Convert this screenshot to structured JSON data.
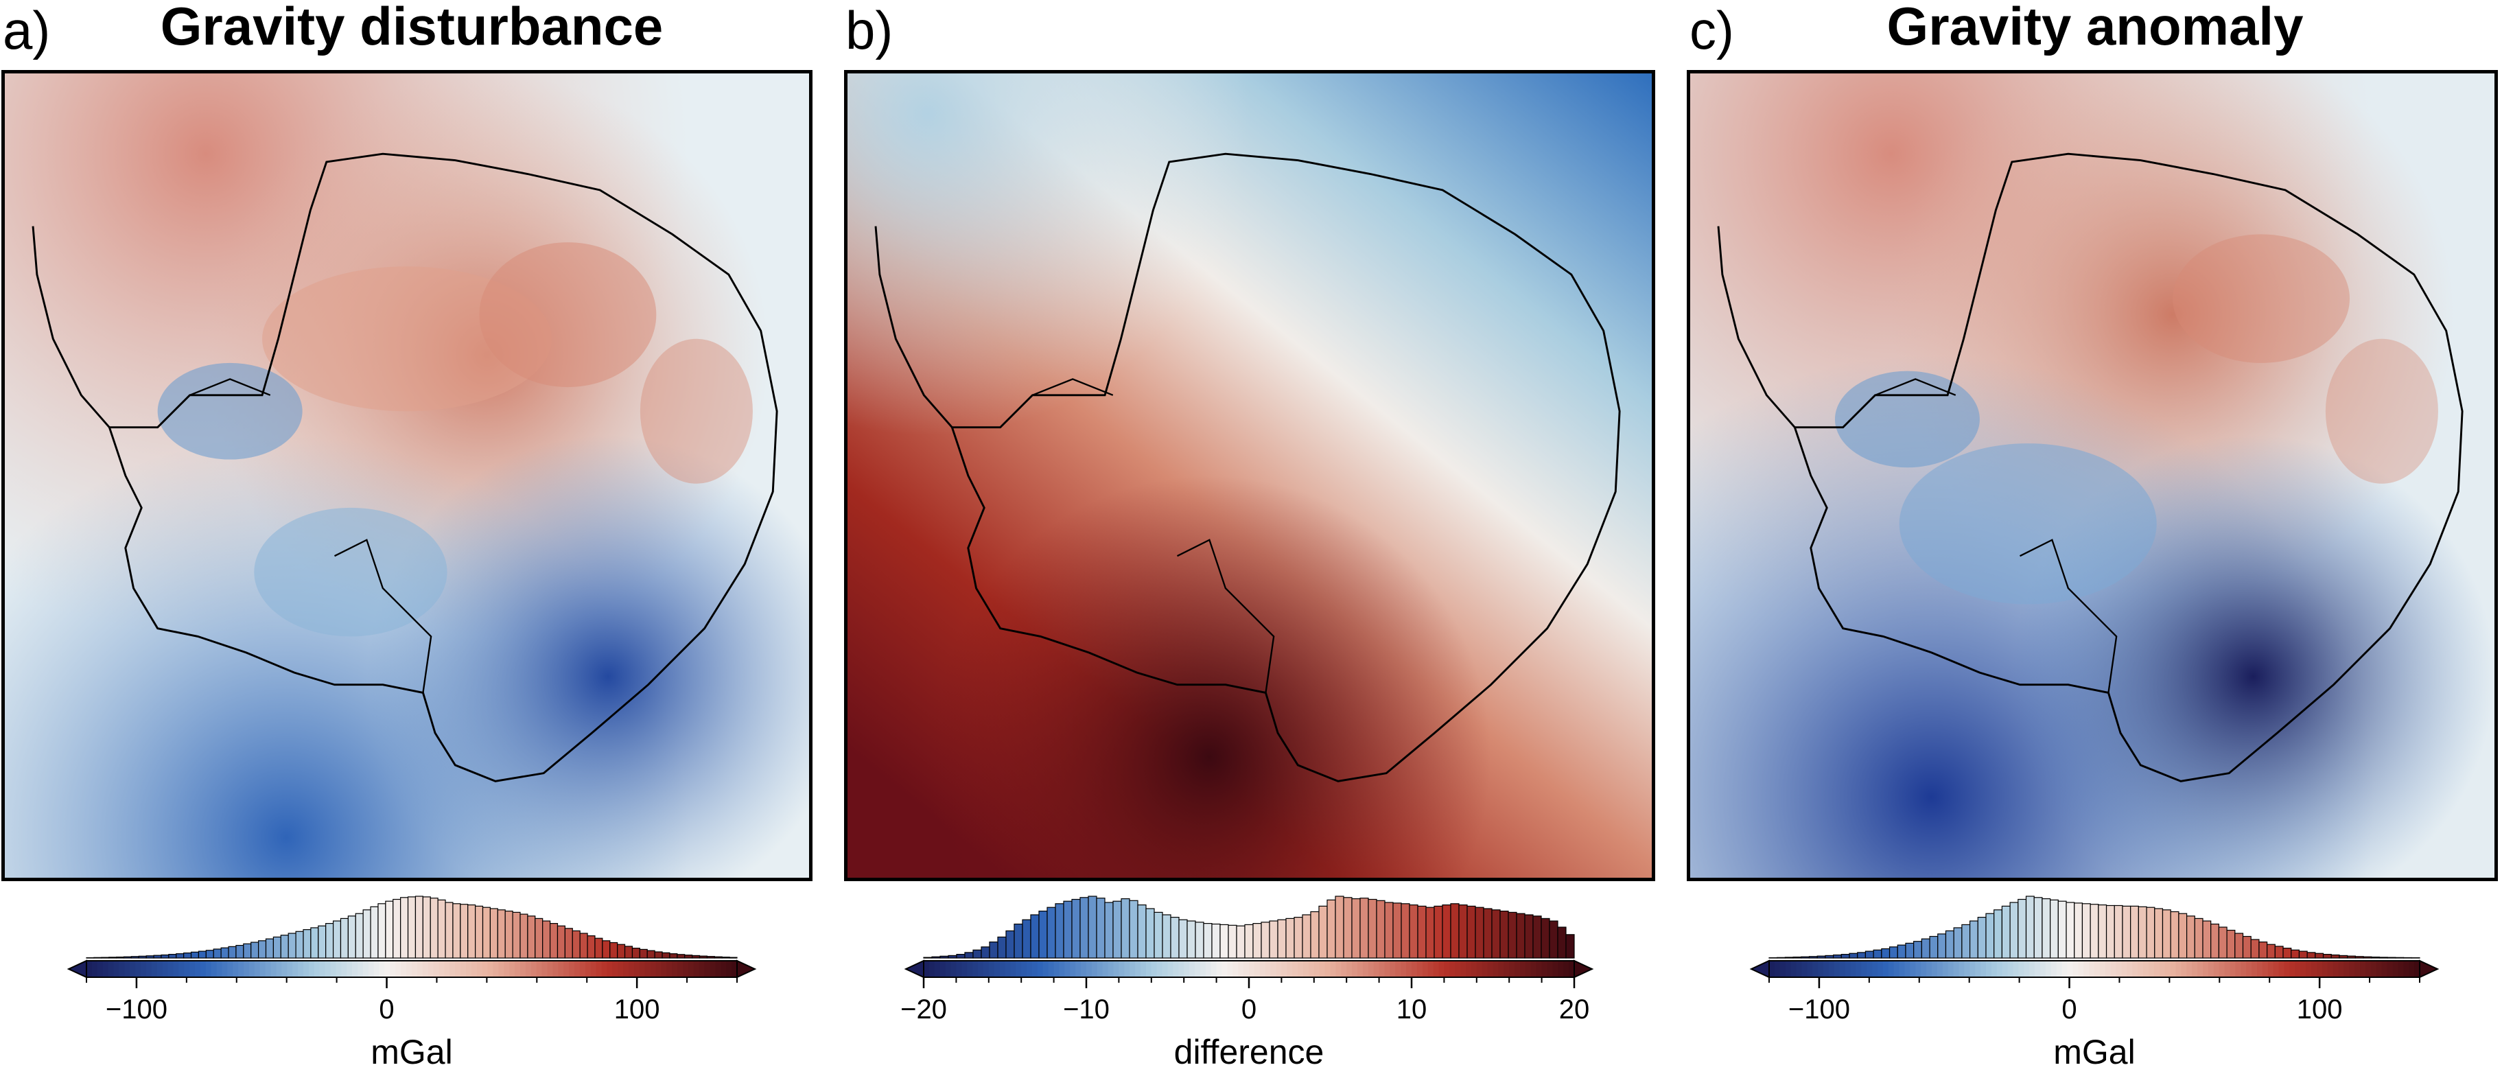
{
  "panels": [
    {
      "letter": "a)",
      "title": "Gravity disturbance",
      "colorbar": {
        "label": "mGal",
        "ticks": [
          "−100",
          "0",
          "100"
        ],
        "tick_values": [
          -100,
          0,
          100
        ],
        "range": [
          -120,
          140
        ],
        "cmap": "balance"
      },
      "histogram": [
        0.5,
        0.8,
        1,
        1.3,
        1.6,
        2,
        2.5,
        3,
        3.6,
        4.3,
        5,
        6,
        7,
        8.2,
        9.6,
        11,
        12.5,
        14.5,
        16.5,
        18.5,
        20.5,
        23,
        25.5,
        28,
        31,
        34,
        37,
        40,
        43,
        46,
        49,
        52,
        56,
        60,
        64,
        68,
        72,
        78,
        83,
        88,
        92,
        95,
        98,
        99,
        100,
        99,
        97,
        94,
        90,
        88,
        87,
        86,
        84,
        82,
        80,
        78,
        76,
        74,
        71,
        68,
        64,
        60,
        56,
        52,
        48,
        44,
        40,
        36,
        32,
        28,
        25,
        22,
        19,
        16,
        14,
        12,
        10,
        8.5,
        7,
        5.8,
        4.8,
        4,
        3.2,
        2.6,
        2,
        1.5,
        1
      ]
    },
    {
      "letter": "b)",
      "title": "",
      "colorbar": {
        "label": "difference",
        "ticks": [
          "−20",
          "−10",
          "0",
          "10",
          "20"
        ],
        "tick_values": [
          -20,
          -10,
          0,
          10,
          20
        ],
        "range": [
          -20,
          20
        ],
        "cmap": "balance"
      },
      "histogram": [
        1,
        2,
        3,
        4,
        6,
        9,
        13,
        18,
        26,
        34,
        44,
        55,
        62,
        70,
        76,
        82,
        88,
        92,
        95,
        98,
        100,
        97,
        90,
        92,
        96,
        93,
        86,
        80,
        74,
        70,
        66,
        62,
        60,
        58,
        56,
        55,
        54,
        53,
        52,
        54,
        56,
        58,
        60,
        62,
        64,
        66,
        70,
        75,
        84,
        94,
        100,
        98,
        96,
        97,
        95,
        93,
        90,
        89,
        88,
        86,
        84,
        82,
        84,
        86,
        88,
        86,
        84,
        82,
        80,
        78,
        76,
        74,
        72,
        70,
        68,
        64,
        60,
        50,
        38
      ]
    },
    {
      "letter": "c)",
      "title": "Gravity anomaly",
      "colorbar": {
        "label": "mGal",
        "ticks": [
          "−100",
          "0",
          "100"
        ],
        "tick_values": [
          -100,
          0,
          100
        ],
        "range": [
          -120,
          140
        ],
        "cmap": "balance"
      },
      "histogram": [
        0.5,
        0.8,
        1.2,
        1.6,
        2,
        2.5,
        3.2,
        4,
        5,
        6,
        7.5,
        9,
        11,
        13,
        15,
        18,
        21,
        24,
        27,
        31,
        35,
        39,
        44,
        49,
        54,
        60,
        66,
        72,
        78,
        84,
        90,
        95,
        100,
        98,
        96,
        94,
        92,
        90,
        89,
        88,
        87,
        86,
        85,
        85,
        84,
        84,
        83,
        82,
        80,
        78,
        75,
        72,
        68,
        64,
        60,
        55,
        50,
        45,
        40,
        35,
        30,
        26,
        22,
        19,
        16,
        13,
        11,
        9,
        7.5,
        6,
        5,
        4,
        3.2,
        2.5,
        2,
        1.6,
        1.2,
        1,
        0.8,
        0.6,
        0.5
      ]
    }
  ],
  "colors": {
    "deep_blue": "#1a1e5c",
    "blue": "#2f64b8",
    "light_blue": "#a9cce0",
    "white": "#f4f1ef",
    "light_red": "#e8b3a0",
    "red": "#b53228",
    "dark_red": "#3c0911",
    "outline": "#000000"
  }
}
